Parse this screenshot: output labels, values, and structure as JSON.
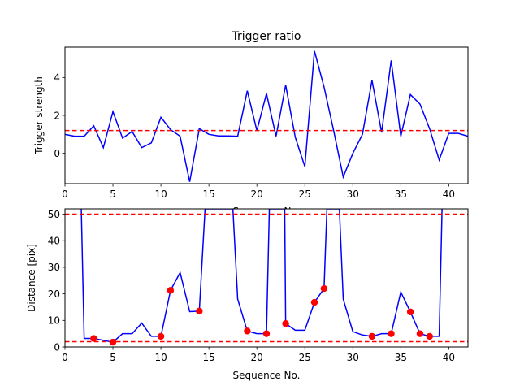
{
  "chart_data": [
    {
      "type": "line",
      "title": "Trigger ratio",
      "xlabel": "Sequence No.",
      "ylabel": "Trigger strength",
      "xlim": [
        0,
        42
      ],
      "ylim": [
        -1.6,
        5.6
      ],
      "xticks": [
        0,
        5,
        10,
        15,
        20,
        25,
        30,
        35,
        40
      ],
      "yticks": [
        0,
        2,
        4
      ],
      "threshold": 1.2,
      "colors": {
        "line": "#0000ff",
        "threshold": "#ff0000"
      },
      "series": [
        {
          "x": [
            0,
            1,
            2,
            3,
            4,
            5,
            6,
            7,
            8,
            9,
            10,
            11,
            12,
            13,
            14,
            15,
            16,
            17,
            18,
            19,
            20,
            21,
            22,
            23,
            24,
            25,
            26,
            27,
            28,
            29,
            30,
            31,
            32,
            33,
            34,
            35,
            36,
            37,
            38,
            39,
            40,
            41,
            42
          ],
          "values": [
            1.0,
            0.9,
            0.9,
            1.45,
            0.3,
            2.2,
            0.8,
            1.15,
            0.3,
            0.55,
            1.9,
            1.25,
            0.9,
            -1.5,
            1.3,
            1.0,
            0.92,
            0.92,
            0.9,
            3.3,
            1.2,
            3.15,
            0.9,
            3.6,
            0.85,
            -0.7,
            5.4,
            3.5,
            1.2,
            -1.25,
            0.0,
            1.0,
            3.85,
            1.1,
            4.9,
            0.9,
            3.1,
            2.6,
            1.3,
            -0.35,
            1.05,
            1.05,
            0.9
          ]
        }
      ]
    },
    {
      "type": "line",
      "title": "",
      "xlabel": "Sequence No.",
      "ylabel": "Distance [pix]",
      "xlim": [
        0,
        42
      ],
      "ylim": [
        0,
        52
      ],
      "xticks": [
        0,
        5,
        10,
        15,
        20,
        25,
        30,
        35,
        40
      ],
      "yticks": [
        0,
        10,
        20,
        30,
        40,
        50
      ],
      "thresholds": [
        50,
        2
      ],
      "colors": {
        "line": "#0000ff",
        "threshold": "#ff0000",
        "markers": "#ff0000"
      },
      "series": [
        {
          "x": [
            1.7,
            2,
            3,
            4,
            5,
            6,
            7,
            8,
            9,
            10,
            11,
            12,
            13,
            14,
            14.6,
            17.5,
            18,
            19,
            20,
            21,
            21.3,
            22.9,
            23,
            24,
            25,
            26,
            27,
            27.3,
            28.6,
            29,
            30,
            31,
            32,
            33,
            34,
            35,
            36,
            37,
            38,
            39,
            39.3
          ],
          "values": [
            52,
            3.2,
            3.2,
            2.5,
            1.8,
            5.0,
            5.0,
            9.0,
            4.0,
            4.0,
            21.3,
            28.0,
            13.3,
            13.5,
            52,
            52,
            18.0,
            6.0,
            5.0,
            5.0,
            52,
            52,
            8.8,
            6.3,
            6.3,
            16.8,
            22.0,
            52,
            52,
            18.0,
            5.8,
            4.5,
            4.0,
            5.0,
            5.0,
            20.7,
            13.2,
            5.0,
            4.0,
            4.0,
            52
          ]
        }
      ],
      "markers": {
        "x": [
          3,
          5,
          10,
          11,
          14,
          19,
          21,
          23,
          26,
          27,
          32,
          34,
          36,
          37,
          38
        ],
        "values": [
          3.2,
          1.8,
          4.0,
          21.3,
          13.5,
          6.0,
          5.0,
          8.8,
          16.8,
          22.0,
          4.0,
          5.0,
          13.2,
          5.0,
          4.0
        ]
      }
    }
  ]
}
